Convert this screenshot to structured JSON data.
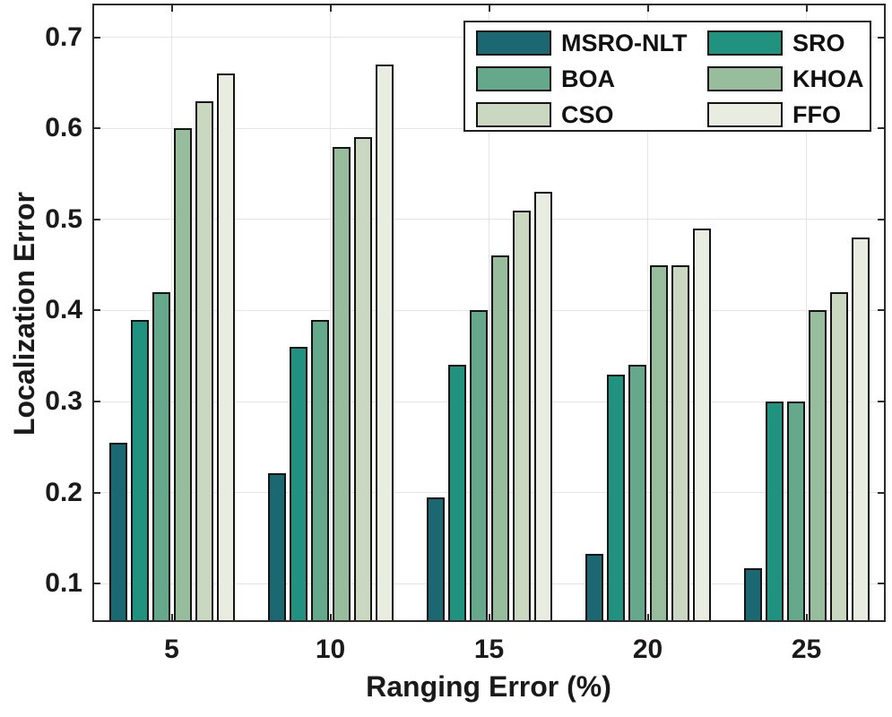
{
  "chart_data": {
    "type": "bar",
    "title": "",
    "xlabel": "Ranging Error (%)",
    "ylabel": "Localization Error",
    "categories": [
      "5",
      "10",
      "15",
      "20",
      "25"
    ],
    "series": [
      {
        "name": "MSRO-NLT",
        "color": "#1b6872",
        "values": [
          0.255,
          0.221,
          0.195,
          0.133,
          0.117
        ]
      },
      {
        "name": "SRO",
        "color": "#219180",
        "values": [
          0.39,
          0.36,
          0.34,
          0.33,
          0.3
        ]
      },
      {
        "name": "BOA",
        "color": "#65a88b",
        "values": [
          0.42,
          0.39,
          0.4,
          0.34,
          0.3
        ]
      },
      {
        "name": "KHOA",
        "color": "#98bd9d",
        "values": [
          0.6,
          0.58,
          0.46,
          0.45,
          0.4
        ]
      },
      {
        "name": "CSO",
        "color": "#cbd8c1",
        "values": [
          0.63,
          0.59,
          0.51,
          0.45,
          0.42
        ]
      },
      {
        "name": "FFO",
        "color": "#e9ece0",
        "values": [
          0.66,
          0.67,
          0.53,
          0.49,
          0.48
        ]
      }
    ],
    "yticks": [
      "0.1",
      "0.2",
      "0.3",
      "0.4",
      "0.5",
      "0.6",
      "0.7"
    ],
    "ylim": [
      0.058,
      0.737
    ],
    "grid": true,
    "legend_position": "top-right",
    "legend_columns": 2,
    "legend_order_rows": [
      [
        "MSRO-NLT",
        "SRO"
      ],
      [
        "BOA",
        "KHOA"
      ],
      [
        "CSO",
        "FFO"
      ]
    ]
  },
  "colors": {
    "axis": "#2a2a2a",
    "grid": "#e4e4e4",
    "text": "#1a1a1a",
    "bar_edge": "#141414",
    "background": "#ffffff"
  }
}
